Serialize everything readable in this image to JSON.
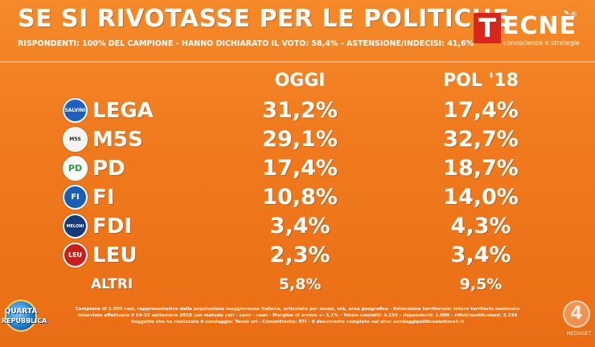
{
  "header": {
    "title": "SE SI RIVOTASSE PER LE POLITICHE",
    "subtitle": "RISPONDENTI: 100% DEL CAMPIONE - HANNO DICHIARATO IL VOTO: 58,4% - ASTENSIONE/INDECISI: 41,6%"
  },
  "brand": {
    "logo_first": "T",
    "logo_rest": "ECNÈ",
    "registered": "®",
    "tagline": "conoscienze e strategie",
    "accent": "#d9261c"
  },
  "columns": {
    "oggi": "OGGI",
    "pol": "POL '18"
  },
  "parties": [
    {
      "name": "LEGA",
      "oggi": "31,2%",
      "pol": "17,4%",
      "logo_color": "#1f5fbf",
      "logo_text": "SALVINI"
    },
    {
      "name": "M5S",
      "oggi": "29,1%",
      "pol": "32,7%",
      "logo_color": "#f4f4f4",
      "logo_text": "M5S"
    },
    {
      "name": "PD",
      "oggi": "17,4%",
      "pol": "18,7%",
      "logo_color": "#2e9b3e",
      "logo_text": "PD"
    },
    {
      "name": "FI",
      "oggi": "10,8%",
      "pol": "14,0%",
      "logo_color": "#1a5fb4",
      "logo_text": "FI"
    },
    {
      "name": "FDI",
      "oggi": "3,4%",
      "pol": "4,3%",
      "logo_color": "#163a7a",
      "logo_text": "MELONI"
    },
    {
      "name": "LEU",
      "oggi": "2,3%",
      "pol": "3,4%",
      "logo_color": "#c81e1e",
      "logo_text": "LEU"
    },
    {
      "name": "ALTRI",
      "oggi": "5,8%",
      "pol": "9,5%"
    }
  ],
  "footer": {
    "line1": "Campione di 1.000 casi, rappresentativo della popolazione maggiorenne italiana, articolato per sesso, età, area geografica - Estensione territoriale: intero territorio nazionale",
    "line2": "Interviste effettuate il 14-15 settembre 2018 con metodo cati - cami - cawi - Margine di errore +- 3,1% - Totale contatti: 4.234 - rispondenti: 1.000 - rifiuti/sostituzioni: 3.234",
    "line3": "Soggetto che ha realizzato il sondaggio: Tecnè srl - Committente: RTI - Il documento completo sul sito: sondaggipoliticoelettorali.it"
  },
  "channel": {
    "show_line1": "QUARTA",
    "show_line2": "REPUBBLICA",
    "network_number": "4",
    "network_name": "MEDIASET"
  }
}
